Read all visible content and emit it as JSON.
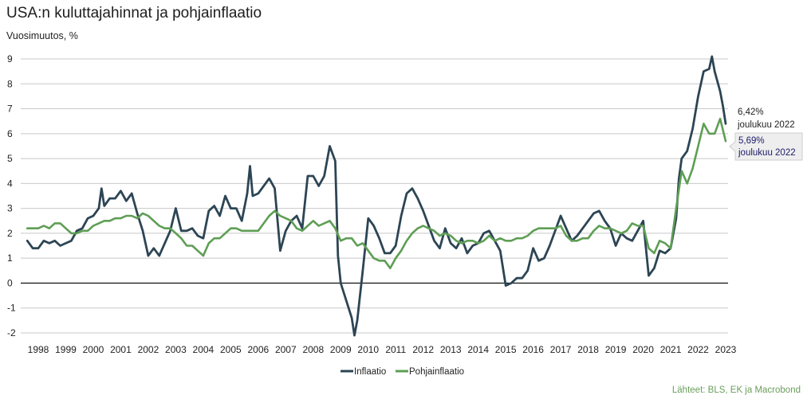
{
  "chart_data": {
    "type": "line",
    "title": "USA:n kuluttajahinnat ja pohjainflaatio",
    "ylabel": "Vuosimuutos, %",
    "xlabel": "",
    "ylim": [
      -2,
      9
    ],
    "xlim": [
      1997.6,
      2023.0
    ],
    "yticks": [
      "9",
      "8",
      "7",
      "6",
      "5",
      "4",
      "3",
      "2",
      "1",
      "0",
      "-1",
      "-2"
    ],
    "xticks": [
      "1998",
      "1999",
      "2000",
      "2001",
      "2002",
      "2003",
      "2004",
      "2005",
      "2006",
      "2007",
      "2008",
      "2009",
      "2010",
      "2011",
      "2012",
      "2013",
      "2014",
      "2015",
      "2016",
      "2017",
      "2018",
      "2019",
      "2020",
      "2021",
      "2022",
      "2023"
    ],
    "grid": true,
    "legend": "bottom-center",
    "series": [
      {
        "name": "Inflaatio",
        "color": "#2c4554",
        "points": [
          [
            1997.6,
            1.7
          ],
          [
            1997.8,
            1.4
          ],
          [
            1998.0,
            1.4
          ],
          [
            1998.2,
            1.7
          ],
          [
            1998.4,
            1.6
          ],
          [
            1998.6,
            1.7
          ],
          [
            1998.8,
            1.5
          ],
          [
            1999.0,
            1.6
          ],
          [
            1999.2,
            1.7
          ],
          [
            1999.4,
            2.1
          ],
          [
            1999.6,
            2.2
          ],
          [
            1999.8,
            2.6
          ],
          [
            2000.0,
            2.7
          ],
          [
            2000.2,
            3.0
          ],
          [
            2000.3,
            3.8
          ],
          [
            2000.4,
            3.1
          ],
          [
            2000.6,
            3.4
          ],
          [
            2000.8,
            3.4
          ],
          [
            2001.0,
            3.7
          ],
          [
            2001.2,
            3.3
          ],
          [
            2001.4,
            3.6
          ],
          [
            2001.6,
            2.8
          ],
          [
            2001.8,
            2.1
          ],
          [
            2002.0,
            1.1
          ],
          [
            2002.2,
            1.4
          ],
          [
            2002.4,
            1.1
          ],
          [
            2002.6,
            1.6
          ],
          [
            2002.8,
            2.1
          ],
          [
            2003.0,
            3.0
          ],
          [
            2003.2,
            2.1
          ],
          [
            2003.4,
            2.1
          ],
          [
            2003.6,
            2.2
          ],
          [
            2003.8,
            1.9
          ],
          [
            2004.0,
            1.8
          ],
          [
            2004.2,
            2.9
          ],
          [
            2004.4,
            3.1
          ],
          [
            2004.6,
            2.7
          ],
          [
            2004.8,
            3.5
          ],
          [
            2005.0,
            3.0
          ],
          [
            2005.2,
            3.0
          ],
          [
            2005.4,
            2.5
          ],
          [
            2005.6,
            3.6
          ],
          [
            2005.7,
            4.7
          ],
          [
            2005.8,
            3.5
          ],
          [
            2006.0,
            3.6
          ],
          [
            2006.2,
            3.9
          ],
          [
            2006.4,
            4.2
          ],
          [
            2006.6,
            3.8
          ],
          [
            2006.8,
            1.3
          ],
          [
            2007.0,
            2.1
          ],
          [
            2007.2,
            2.5
          ],
          [
            2007.4,
            2.7
          ],
          [
            2007.6,
            2.2
          ],
          [
            2007.8,
            4.3
          ],
          [
            2008.0,
            4.3
          ],
          [
            2008.2,
            3.9
          ],
          [
            2008.4,
            4.3
          ],
          [
            2008.6,
            5.5
          ],
          [
            2008.8,
            4.9
          ],
          [
            2008.9,
            1.1
          ],
          [
            2009.0,
            0.0
          ],
          [
            2009.2,
            -0.7
          ],
          [
            2009.4,
            -1.4
          ],
          [
            2009.5,
            -2.1
          ],
          [
            2009.6,
            -1.5
          ],
          [
            2009.8,
            0.5
          ],
          [
            2010.0,
            2.6
          ],
          [
            2010.2,
            2.3
          ],
          [
            2010.4,
            1.8
          ],
          [
            2010.6,
            1.2
          ],
          [
            2010.8,
            1.2
          ],
          [
            2011.0,
            1.5
          ],
          [
            2011.2,
            2.7
          ],
          [
            2011.4,
            3.6
          ],
          [
            2011.6,
            3.8
          ],
          [
            2011.8,
            3.4
          ],
          [
            2012.0,
            2.9
          ],
          [
            2012.2,
            2.3
          ],
          [
            2012.4,
            1.7
          ],
          [
            2012.6,
            1.4
          ],
          [
            2012.8,
            2.2
          ],
          [
            2013.0,
            1.6
          ],
          [
            2013.2,
            1.4
          ],
          [
            2013.4,
            1.8
          ],
          [
            2013.6,
            1.2
          ],
          [
            2013.8,
            1.5
          ],
          [
            2014.0,
            1.6
          ],
          [
            2014.2,
            2.0
          ],
          [
            2014.4,
            2.1
          ],
          [
            2014.6,
            1.7
          ],
          [
            2014.8,
            1.3
          ],
          [
            2015.0,
            -0.1
          ],
          [
            2015.2,
            0.0
          ],
          [
            2015.4,
            0.2
          ],
          [
            2015.6,
            0.2
          ],
          [
            2015.8,
            0.5
          ],
          [
            2016.0,
            1.4
          ],
          [
            2016.2,
            0.9
          ],
          [
            2016.4,
            1.0
          ],
          [
            2016.6,
            1.5
          ],
          [
            2016.8,
            2.1
          ],
          [
            2017.0,
            2.7
          ],
          [
            2017.2,
            2.2
          ],
          [
            2017.4,
            1.7
          ],
          [
            2017.6,
            1.9
          ],
          [
            2017.8,
            2.2
          ],
          [
            2018.0,
            2.5
          ],
          [
            2018.2,
            2.8
          ],
          [
            2018.4,
            2.9
          ],
          [
            2018.6,
            2.5
          ],
          [
            2018.8,
            2.2
          ],
          [
            2019.0,
            1.5
          ],
          [
            2019.2,
            2.0
          ],
          [
            2019.4,
            1.8
          ],
          [
            2019.6,
            1.7
          ],
          [
            2019.8,
            2.1
          ],
          [
            2020.0,
            2.5
          ],
          [
            2020.2,
            0.3
          ],
          [
            2020.4,
            0.6
          ],
          [
            2020.6,
            1.3
          ],
          [
            2020.8,
            1.2
          ],
          [
            2021.0,
            1.4
          ],
          [
            2021.2,
            2.6
          ],
          [
            2021.3,
            4.2
          ],
          [
            2021.4,
            5.0
          ],
          [
            2021.6,
            5.3
          ],
          [
            2021.8,
            6.2
          ],
          [
            2022.0,
            7.5
          ],
          [
            2022.2,
            8.5
          ],
          [
            2022.4,
            8.6
          ],
          [
            2022.5,
            9.1
          ],
          [
            2022.6,
            8.5
          ],
          [
            2022.8,
            7.7
          ],
          [
            2022.9,
            7.1
          ],
          [
            2023.0,
            6.4
          ]
        ]
      },
      {
        "name": "Pohjainflaatio",
        "color": "#5e9e54",
        "points": [
          [
            1997.6,
            2.2
          ],
          [
            1997.8,
            2.2
          ],
          [
            1998.0,
            2.2
          ],
          [
            1998.2,
            2.3
          ],
          [
            1998.4,
            2.2
          ],
          [
            1998.6,
            2.4
          ],
          [
            1998.8,
            2.4
          ],
          [
            1999.0,
            2.2
          ],
          [
            1999.2,
            2.0
          ],
          [
            1999.4,
            2.0
          ],
          [
            1999.6,
            2.1
          ],
          [
            1999.8,
            2.1
          ],
          [
            2000.0,
            2.3
          ],
          [
            2000.2,
            2.4
          ],
          [
            2000.4,
            2.5
          ],
          [
            2000.6,
            2.5
          ],
          [
            2000.8,
            2.6
          ],
          [
            2001.0,
            2.6
          ],
          [
            2001.2,
            2.7
          ],
          [
            2001.4,
            2.7
          ],
          [
            2001.6,
            2.6
          ],
          [
            2001.8,
            2.8
          ],
          [
            2002.0,
            2.7
          ],
          [
            2002.2,
            2.5
          ],
          [
            2002.4,
            2.3
          ],
          [
            2002.6,
            2.2
          ],
          [
            2002.8,
            2.2
          ],
          [
            2003.0,
            2.0
          ],
          [
            2003.2,
            1.8
          ],
          [
            2003.4,
            1.5
          ],
          [
            2003.6,
            1.5
          ],
          [
            2003.8,
            1.3
          ],
          [
            2004.0,
            1.1
          ],
          [
            2004.2,
            1.6
          ],
          [
            2004.4,
            1.8
          ],
          [
            2004.6,
            1.8
          ],
          [
            2004.8,
            2.0
          ],
          [
            2005.0,
            2.2
          ],
          [
            2005.2,
            2.2
          ],
          [
            2005.4,
            2.1
          ],
          [
            2005.6,
            2.1
          ],
          [
            2005.8,
            2.1
          ],
          [
            2006.0,
            2.1
          ],
          [
            2006.2,
            2.4
          ],
          [
            2006.4,
            2.7
          ],
          [
            2006.6,
            2.9
          ],
          [
            2006.8,
            2.7
          ],
          [
            2007.0,
            2.6
          ],
          [
            2007.2,
            2.5
          ],
          [
            2007.4,
            2.2
          ],
          [
            2007.6,
            2.1
          ],
          [
            2007.8,
            2.3
          ],
          [
            2008.0,
            2.5
          ],
          [
            2008.2,
            2.3
          ],
          [
            2008.4,
            2.4
          ],
          [
            2008.6,
            2.5
          ],
          [
            2008.8,
            2.2
          ],
          [
            2009.0,
            1.7
          ],
          [
            2009.2,
            1.8
          ],
          [
            2009.4,
            1.8
          ],
          [
            2009.6,
            1.5
          ],
          [
            2009.8,
            1.6
          ],
          [
            2010.0,
            1.3
          ],
          [
            2010.2,
            1.0
          ],
          [
            2010.4,
            0.9
          ],
          [
            2010.6,
            0.9
          ],
          [
            2010.8,
            0.6
          ],
          [
            2011.0,
            1.0
          ],
          [
            2011.2,
            1.3
          ],
          [
            2011.4,
            1.7
          ],
          [
            2011.6,
            2.0
          ],
          [
            2011.8,
            2.2
          ],
          [
            2012.0,
            2.3
          ],
          [
            2012.2,
            2.2
          ],
          [
            2012.4,
            2.1
          ],
          [
            2012.6,
            1.9
          ],
          [
            2012.8,
            2.0
          ],
          [
            2013.0,
            1.9
          ],
          [
            2013.2,
            1.7
          ],
          [
            2013.4,
            1.6
          ],
          [
            2013.6,
            1.7
          ],
          [
            2013.8,
            1.7
          ],
          [
            2014.0,
            1.6
          ],
          [
            2014.2,
            1.7
          ],
          [
            2014.4,
            1.9
          ],
          [
            2014.6,
            1.7
          ],
          [
            2014.8,
            1.8
          ],
          [
            2015.0,
            1.7
          ],
          [
            2015.2,
            1.7
          ],
          [
            2015.4,
            1.8
          ],
          [
            2015.6,
            1.8
          ],
          [
            2015.8,
            1.9
          ],
          [
            2016.0,
            2.1
          ],
          [
            2016.2,
            2.2
          ],
          [
            2016.4,
            2.2
          ],
          [
            2016.6,
            2.2
          ],
          [
            2016.8,
            2.2
          ],
          [
            2017.0,
            2.3
          ],
          [
            2017.2,
            1.9
          ],
          [
            2017.4,
            1.7
          ],
          [
            2017.6,
            1.7
          ],
          [
            2017.8,
            1.8
          ],
          [
            2018.0,
            1.8
          ],
          [
            2018.2,
            2.1
          ],
          [
            2018.4,
            2.3
          ],
          [
            2018.6,
            2.2
          ],
          [
            2018.8,
            2.2
          ],
          [
            2019.0,
            2.1
          ],
          [
            2019.2,
            2.0
          ],
          [
            2019.4,
            2.1
          ],
          [
            2019.6,
            2.4
          ],
          [
            2019.8,
            2.3
          ],
          [
            2020.0,
            2.3
          ],
          [
            2020.2,
            1.4
          ],
          [
            2020.4,
            1.2
          ],
          [
            2020.6,
            1.7
          ],
          [
            2020.8,
            1.6
          ],
          [
            2021.0,
            1.4
          ],
          [
            2021.2,
            3.0
          ],
          [
            2021.4,
            4.5
          ],
          [
            2021.6,
            4.0
          ],
          [
            2021.8,
            4.6
          ],
          [
            2022.0,
            5.5
          ],
          [
            2022.2,
            6.4
          ],
          [
            2022.4,
            6.0
          ],
          [
            2022.6,
            6.0
          ],
          [
            2022.8,
            6.6
          ],
          [
            2023.0,
            5.7
          ]
        ]
      }
    ],
    "annotations": [
      {
        "series": "Inflaatio",
        "value": "6,42%",
        "label": "joulukuu 2022"
      },
      {
        "series": "Pohjainflaatio",
        "value": "5,69%",
        "label": "joulukuu 2022"
      }
    ]
  },
  "source": "Lähteet: BLS, EK ja Macrobond"
}
